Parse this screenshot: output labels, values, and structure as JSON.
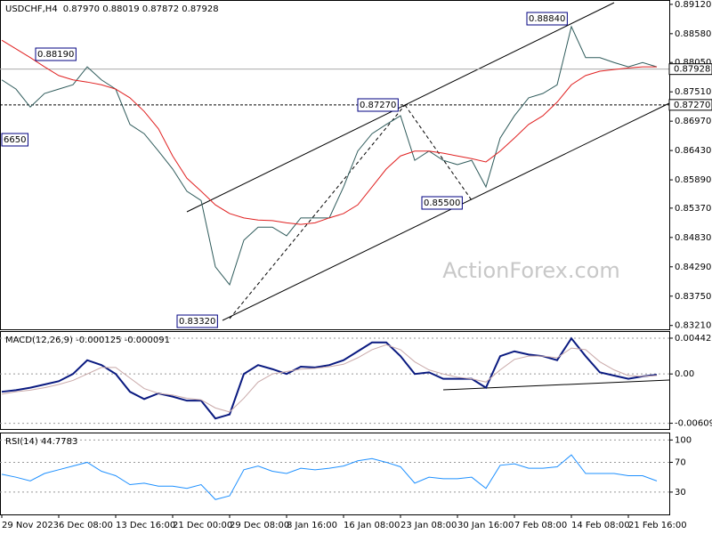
{
  "chart_data": [
    {
      "type": "line",
      "title": "USDCHF,H4",
      "subtitle": "0.87970 0.88019 0.87872 0.87928",
      "watermark": "ActionForex.com",
      "categories": [
        "29 Nov 2023",
        null,
        null,
        null,
        "6 Dec 08:00",
        null,
        null,
        null,
        "13 Dec 16:00",
        null,
        null,
        null,
        "21 Dec 00:00",
        null,
        null,
        null,
        "29 Dec 08:00",
        null,
        null,
        null,
        "8 Jan 16:00",
        null,
        null,
        null,
        "16 Jan 08:00",
        null,
        null,
        null,
        "23 Jan 08:00",
        null,
        null,
        null,
        "30 Jan 16:00",
        null,
        null,
        null,
        "7 Feb 08:00",
        null,
        null,
        null,
        "14 Feb 08:00",
        null,
        null,
        null,
        "21 Feb 16:00",
        null,
        null
      ],
      "series": [
        {
          "color": "#2f5b5b",
          "values": [
            0.8773,
            0.8756,
            0.8723,
            0.8748,
            0.8756,
            0.8764,
            0.8797,
            0.8773,
            0.8756,
            0.8691,
            0.8674,
            0.8642,
            0.8609,
            0.8568,
            0.8551,
            0.8429,
            0.8396,
            0.8478,
            0.8502,
            0.8502,
            0.8486,
            0.8519,
            0.8519,
            0.8519,
            0.8576,
            0.8642,
            0.8674,
            0.8691,
            0.8707,
            0.8625,
            0.8642,
            0.8625,
            0.8617,
            0.8625,
            0.8576,
            0.8666,
            0.8707,
            0.874,
            0.8748,
            0.8764,
            0.8871,
            0.8814,
            0.8814,
            0.8805,
            0.8797,
            0.8805,
            0.8797
          ]
        },
        {
          "color": "#e02020",
          "values": [
            0.8846,
            0.883,
            0.8814,
            0.8797,
            0.8781,
            0.8773,
            0.8769,
            0.8764,
            0.8756,
            0.874,
            0.8715,
            0.8683,
            0.8633,
            0.8592,
            0.8568,
            0.8543,
            0.8527,
            0.8519,
            0.8515,
            0.8514,
            0.851,
            0.8507,
            0.851,
            0.8519,
            0.8527,
            0.8543,
            0.8576,
            0.8609,
            0.8633,
            0.8642,
            0.8642,
            0.8638,
            0.8633,
            0.8628,
            0.8622,
            0.8642,
            0.8666,
            0.8691,
            0.8707,
            0.8732,
            0.8764,
            0.8781,
            0.8789,
            0.8792,
            0.8795,
            0.8797,
            0.8797
          ]
        }
      ],
      "ylim": [
        0.8314,
        0.892
      ],
      "yticks": [
        {
          "value": 0.8912,
          "label": "0.89120"
        },
        {
          "value": 0.8858,
          "label": "0.88580"
        },
        {
          "value": 0.8805,
          "label": "0.88050"
        },
        {
          "value": 0.8751,
          "label": "0.87510"
        },
        {
          "value": 0.8697,
          "label": "0.86970"
        },
        {
          "value": 0.8643,
          "label": "0.86430"
        },
        {
          "value": 0.8589,
          "label": "0.85890"
        },
        {
          "value": 0.8537,
          "label": "0.85370"
        },
        {
          "value": 0.8483,
          "label": "0.84830"
        },
        {
          "value": 0.8429,
          "label": "0.84290"
        },
        {
          "value": 0.8375,
          "label": "0.83750"
        },
        {
          "value": 0.8321,
          "label": "0.83210"
        }
      ],
      "hlines": [
        0.87928,
        {
          "value": 0.8727,
          "label": "0.87270"
        }
      ],
      "annotations": [
        "0.88190",
        "0.87270",
        "0.88840",
        "0.85500",
        "0.83320",
        "6650"
      ],
      "grid": false
    },
    {
      "type": "line",
      "title": "MACD(12,26,9) -0.000125 -0.000091",
      "series": [
        {
          "color": "#0a1a80",
          "values": [
            -0.0022,
            -0.002,
            -0.0017,
            -0.0013,
            -0.0009,
            0,
            0.0017,
            0.0011,
            0,
            -0.0022,
            -0.0031,
            -0.0024,
            -0.0028,
            -0.0033,
            -0.0033,
            -0.0055,
            -0.005,
            0,
            0.0011,
            0.0006,
            0,
            0.0009,
            0.0008,
            0.0011,
            0.0017,
            0.0028,
            0.0039,
            0.0039,
            0.0022,
            0,
            0.0002,
            -0.0006,
            -0.0006,
            -0.0006,
            -0.0017,
            0.0022,
            0.0028,
            0.0024,
            0.0022,
            0.0017,
            0.0044,
            0.0022,
            0.0002,
            -0.0002,
            -0.0006,
            -0.0003,
            -0.0001
          ]
        },
        {
          "color": "#c9a9a9",
          "values": [
            -0.0025,
            -0.0022,
            -0.002,
            -0.0017,
            -0.0013,
            -0.0008,
            0,
            0.0008,
            0.0008,
            -0.0005,
            -0.0018,
            -0.0024,
            -0.0026,
            -0.003,
            -0.0032,
            -0.0042,
            -0.0047,
            -0.003,
            -0.001,
            0,
            0.0003,
            0.0006,
            0.0007,
            0.0009,
            0.0012,
            0.002,
            0.003,
            0.0036,
            0.003,
            0.0015,
            0.0005,
            0,
            -0.0004,
            -0.0006,
            -0.001,
            0.0005,
            0.0018,
            0.0022,
            0.0022,
            0.002,
            0.0032,
            0.003,
            0.0015,
            0.0005,
            -0.0002,
            -0.0003,
            -0.0002
          ]
        }
      ],
      "ylim": [
        -0.0068,
        0.0053
      ],
      "yticks": [
        0.004425,
        {
          "value": 0,
          "label": "0.00"
        },
        -0.006092
      ],
      "grid": true
    },
    {
      "type": "line",
      "title": "RSI(14) 44.7783",
      "series": [
        {
          "color": "#1e90ff",
          "values": [
            54,
            50,
            45,
            55,
            60,
            65,
            70,
            58,
            52,
            40,
            42,
            38,
            38,
            35,
            40,
            20,
            25,
            60,
            65,
            58,
            55,
            62,
            60,
            62,
            65,
            72,
            75,
            70,
            64,
            42,
            50,
            48,
            48,
            50,
            35,
            66,
            68,
            62,
            62,
            64,
            80,
            55,
            55,
            55,
            52,
            52,
            45
          ]
        }
      ],
      "ylim": [
        0,
        110
      ],
      "yticks": [
        100,
        70,
        30
      ],
      "grid": true
    }
  ]
}
